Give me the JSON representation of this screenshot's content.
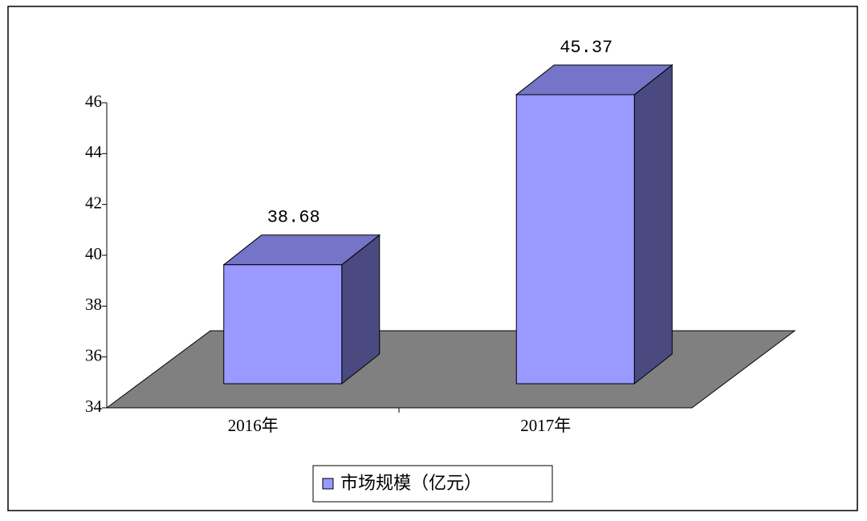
{
  "chart_data": {
    "type": "bar",
    "categories": [
      "2016年",
      "2017年"
    ],
    "series": [
      {
        "name": "市场规模（亿元）",
        "color": "#9999ff",
        "values": [
          38.68,
          45.37
        ]
      }
    ],
    "ylim": [
      34,
      46
    ],
    "yticks": [
      34,
      36,
      38,
      40,
      42,
      44,
      46
    ],
    "legend": "bottom"
  }
}
